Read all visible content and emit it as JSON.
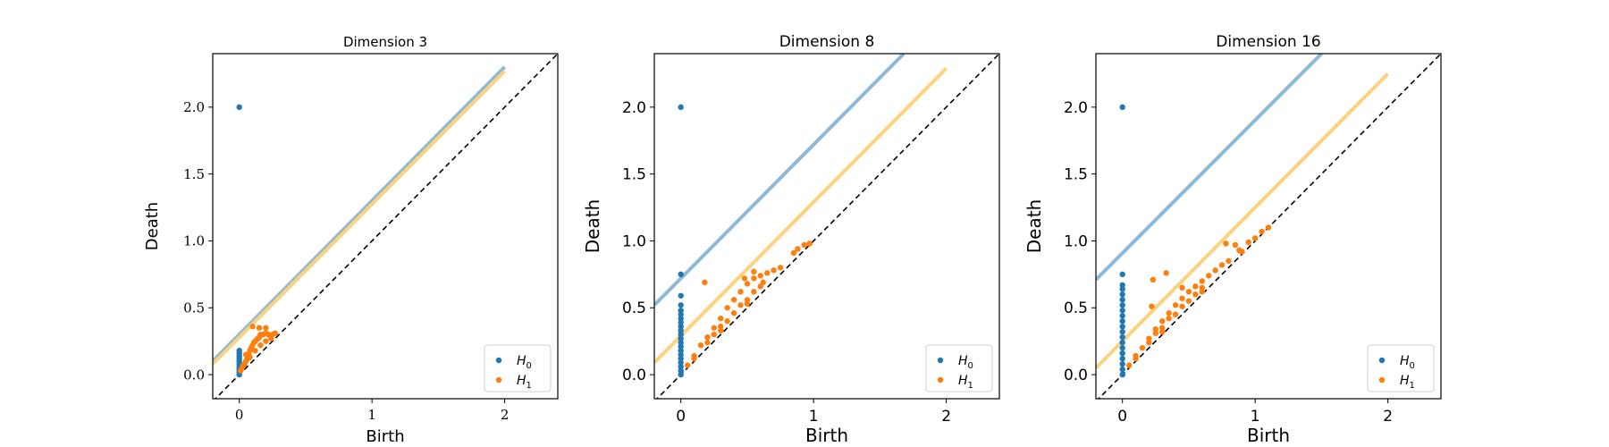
{
  "legend_labels": {
    "h0_base": "H",
    "h0_sub": "0",
    "h1_base": "H",
    "h1_sub": "1"
  },
  "colors": {
    "h0": "#1f77b4",
    "h1": "#ff7f0e",
    "h0_band": "#8db8d8",
    "h1_band": "#fdd27e",
    "diagonal": "#000000"
  },
  "chart_data": [
    {
      "type": "scatter",
      "title": "Dimension 3",
      "xlabel": "Birth",
      "ylabel": "Death",
      "xlim": [
        -0.2,
        2.4
      ],
      "ylim": [
        -0.18,
        2.4
      ],
      "xticks": [
        "0",
        "1",
        "2"
      ],
      "yticks": [
        "0.0",
        "0.5",
        "1.0",
        "1.5",
        "2.0"
      ],
      "legend_position": "lower-right",
      "diagonal": {
        "style": "dashed",
        "from": [
          -0.2,
          -0.2
        ],
        "to": [
          2.4,
          2.4
        ]
      },
      "bands": [
        {
          "name": "H0",
          "from": [
            -0.2,
            0.1
          ],
          "to": [
            2.0,
            2.3
          ]
        },
        {
          "name": "H1",
          "from": [
            -0.2,
            0.08
          ],
          "to": [
            2.0,
            2.27
          ]
        }
      ],
      "series": [
        {
          "name": "H0",
          "points": [
            [
              0,
              0
            ],
            [
              0,
              0.02
            ],
            [
              0,
              0.04
            ],
            [
              0,
              0.06
            ],
            [
              0,
              0.08
            ],
            [
              0,
              0.1
            ],
            [
              0,
              0.12
            ],
            [
              0,
              0.14
            ],
            [
              0,
              0.16
            ],
            [
              0,
              0.18
            ],
            [
              0,
              2.0
            ]
          ]
        },
        {
          "name": "H1",
          "points": [
            [
              0.01,
              0.03
            ],
            [
              0.02,
              0.05
            ],
            [
              0.03,
              0.07
            ],
            [
              0.04,
              0.08
            ],
            [
              0.05,
              0.1
            ],
            [
              0.06,
              0.12
            ],
            [
              0.07,
              0.15
            ],
            [
              0.08,
              0.18
            ],
            [
              0.09,
              0.2
            ],
            [
              0.1,
              0.22
            ],
            [
              0.11,
              0.24
            ],
            [
              0.12,
              0.25
            ],
            [
              0.13,
              0.26
            ],
            [
              0.14,
              0.27
            ],
            [
              0.15,
              0.28
            ],
            [
              0.16,
              0.3
            ],
            [
              0.18,
              0.3
            ],
            [
              0.2,
              0.31
            ],
            [
              0.22,
              0.3
            ],
            [
              0.25,
              0.3
            ],
            [
              0.27,
              0.31
            ],
            [
              0.1,
              0.36
            ],
            [
              0.15,
              0.35
            ],
            [
              0.2,
              0.35
            ],
            [
              0.05,
              0.15
            ],
            [
              0.08,
              0.13
            ],
            [
              0.12,
              0.18
            ],
            [
              0.16,
              0.22
            ],
            [
              0.2,
              0.25
            ],
            [
              0.24,
              0.27
            ]
          ]
        }
      ]
    },
    {
      "type": "scatter",
      "title": "Dimension 8",
      "xlabel": "Birth",
      "ylabel": "Death",
      "xlim": [
        -0.2,
        2.4
      ],
      "ylim": [
        -0.18,
        2.4
      ],
      "xticks": [
        "0",
        "1",
        "2"
      ],
      "yticks": [
        "0.0",
        "0.5",
        "1.0",
        "1.5",
        "2.0"
      ],
      "legend_position": "lower-right",
      "diagonal": {
        "style": "dashed",
        "from": [
          -0.2,
          -0.2
        ],
        "to": [
          2.4,
          2.4
        ]
      },
      "bands": [
        {
          "name": "H0",
          "from": [
            -0.2,
            0.52
          ],
          "to": [
            1.68,
            2.4
          ]
        },
        {
          "name": "H1",
          "from": [
            -0.2,
            0.09
          ],
          "to": [
            2.0,
            2.29
          ]
        }
      ],
      "series": [
        {
          "name": "H0",
          "points": [
            [
              0,
              0
            ],
            [
              0,
              0.03
            ],
            [
              0,
              0.06
            ],
            [
              0,
              0.09
            ],
            [
              0,
              0.12
            ],
            [
              0,
              0.15
            ],
            [
              0,
              0.18
            ],
            [
              0,
              0.21
            ],
            [
              0,
              0.24
            ],
            [
              0,
              0.27
            ],
            [
              0,
              0.3
            ],
            [
              0,
              0.33
            ],
            [
              0,
              0.36
            ],
            [
              0,
              0.39
            ],
            [
              0,
              0.42
            ],
            [
              0,
              0.45
            ],
            [
              0,
              0.48
            ],
            [
              0,
              0.52
            ],
            [
              0,
              0.59
            ],
            [
              0,
              0.75
            ],
            [
              0,
              2.0
            ]
          ]
        },
        {
          "name": "H1",
          "points": [
            [
              0.05,
              0.07
            ],
            [
              0.1,
              0.14
            ],
            [
              0.15,
              0.22
            ],
            [
              0.2,
              0.28
            ],
            [
              0.25,
              0.35
            ],
            [
              0.3,
              0.42
            ],
            [
              0.35,
              0.5
            ],
            [
              0.4,
              0.56
            ],
            [
              0.45,
              0.62
            ],
            [
              0.5,
              0.68
            ],
            [
              0.55,
              0.72
            ],
            [
              0.6,
              0.74
            ],
            [
              0.65,
              0.76
            ],
            [
              0.7,
              0.78
            ],
            [
              0.75,
              0.8
            ],
            [
              0.2,
              0.24
            ],
            [
              0.3,
              0.36
            ],
            [
              0.4,
              0.46
            ],
            [
              0.5,
              0.56
            ],
            [
              0.6,
              0.66
            ],
            [
              0.25,
              0.3
            ],
            [
              0.35,
              0.4
            ],
            [
              0.45,
              0.52
            ],
            [
              0.55,
              0.62
            ],
            [
              0.62,
              0.69
            ],
            [
              0.18,
              0.69
            ],
            [
              0.48,
              0.72
            ],
            [
              0.55,
              0.77
            ],
            [
              0.85,
              0.91
            ],
            [
              0.88,
              0.94
            ],
            [
              0.93,
              0.97
            ],
            [
              0.97,
              0.98
            ],
            [
              0.1,
              0.12
            ],
            [
              0.3,
              0.33
            ],
            [
              0.5,
              0.53
            ]
          ]
        }
      ]
    },
    {
      "type": "scatter",
      "title": "Dimension 16",
      "xlabel": "Birth",
      "ylabel": "Death",
      "xlim": [
        -0.2,
        2.4
      ],
      "ylim": [
        -0.18,
        2.4
      ],
      "xticks": [
        "0",
        "1",
        "2"
      ],
      "yticks": [
        "0.0",
        "0.5",
        "1.0",
        "1.5",
        "2.0"
      ],
      "legend_position": "lower-right",
      "diagonal": {
        "style": "dashed",
        "from": [
          -0.2,
          -0.2
        ],
        "to": [
          2.4,
          2.4
        ]
      },
      "bands": [
        {
          "name": "H0",
          "from": [
            -0.2,
            0.71
          ],
          "to": [
            1.5,
            2.4
          ]
        },
        {
          "name": "H1",
          "from": [
            -0.2,
            0.05
          ],
          "to": [
            2.0,
            2.25
          ]
        }
      ],
      "series": [
        {
          "name": "H0",
          "points": [
            [
              0,
              0
            ],
            [
              0,
              0.04
            ],
            [
              0,
              0.08
            ],
            [
              0,
              0.12
            ],
            [
              0,
              0.16
            ],
            [
              0,
              0.2
            ],
            [
              0,
              0.24
            ],
            [
              0,
              0.28
            ],
            [
              0,
              0.32
            ],
            [
              0,
              0.36
            ],
            [
              0,
              0.4
            ],
            [
              0,
              0.44
            ],
            [
              0,
              0.48
            ],
            [
              0,
              0.52
            ],
            [
              0,
              0.56
            ],
            [
              0,
              0.6
            ],
            [
              0,
              0.64
            ],
            [
              0,
              0.67
            ],
            [
              0,
              0.75
            ],
            [
              0,
              2.0
            ]
          ]
        },
        {
          "name": "H1",
          "points": [
            [
              0.05,
              0.07
            ],
            [
              0.1,
              0.14
            ],
            [
              0.15,
              0.2
            ],
            [
              0.2,
              0.27
            ],
            [
              0.25,
              0.34
            ],
            [
              0.3,
              0.4
            ],
            [
              0.35,
              0.46
            ],
            [
              0.4,
              0.52
            ],
            [
              0.45,
              0.57
            ],
            [
              0.5,
              0.62
            ],
            [
              0.55,
              0.66
            ],
            [
              0.6,
              0.7
            ],
            [
              0.65,
              0.74
            ],
            [
              0.7,
              0.78
            ],
            [
              0.75,
              0.82
            ],
            [
              0.8,
              0.85
            ],
            [
              0.2,
              0.24
            ],
            [
              0.3,
              0.35
            ],
            [
              0.4,
              0.45
            ],
            [
              0.5,
              0.55
            ],
            [
              0.6,
              0.65
            ],
            [
              0.25,
              0.31
            ],
            [
              0.35,
              0.42
            ],
            [
              0.45,
              0.51
            ],
            [
              0.55,
              0.6
            ],
            [
              0.22,
              0.51
            ],
            [
              0.23,
              0.71
            ],
            [
              0.33,
              0.76
            ],
            [
              0.45,
              0.65
            ],
            [
              0.78,
              0.98
            ],
            [
              0.85,
              0.97
            ],
            [
              0.88,
              0.93
            ],
            [
              0.9,
              0.92
            ],
            [
              0.95,
              0.99
            ],
            [
              1.0,
              1.02
            ],
            [
              1.05,
              1.07
            ],
            [
              1.1,
              1.1
            ],
            [
              0.1,
              0.12
            ],
            [
              0.3,
              0.32
            ],
            [
              0.6,
              0.62
            ]
          ]
        }
      ]
    }
  ]
}
